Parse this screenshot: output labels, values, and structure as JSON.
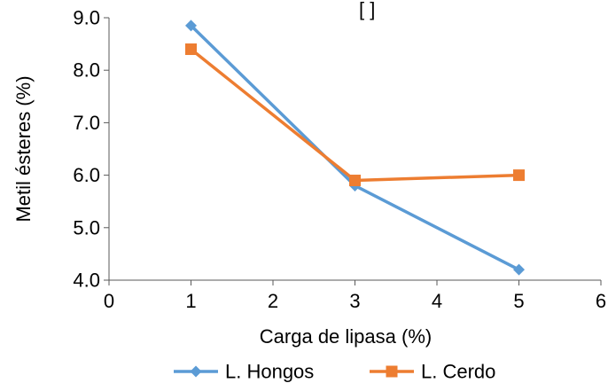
{
  "chart_data": {
    "type": "line",
    "title_fragment": "[ ]",
    "xlabel": "Carga de lipasa (%)",
    "ylabel": "Metil ésteres (%)",
    "xlim": [
      0,
      6
    ],
    "ylim": [
      4.0,
      9.0
    ],
    "x_ticks": [
      "0",
      "1",
      "2",
      "3",
      "4",
      "5",
      "6"
    ],
    "y_ticks": [
      "4.0",
      "5.0",
      "6.0",
      "7.0",
      "8.0",
      "9.0"
    ],
    "grid": false,
    "legend_position": "bottom",
    "series": [
      {
        "name": "L. Hongos",
        "color": "#5B9BD5",
        "marker": "diamond",
        "x": [
          1,
          3,
          5
        ],
        "y": [
          8.85,
          5.8,
          4.2
        ]
      },
      {
        "name": "L. Cerdo",
        "color": "#ED7D31",
        "marker": "square",
        "x": [
          1,
          3,
          5
        ],
        "y": [
          8.4,
          5.9,
          6.0
        ]
      }
    ]
  }
}
